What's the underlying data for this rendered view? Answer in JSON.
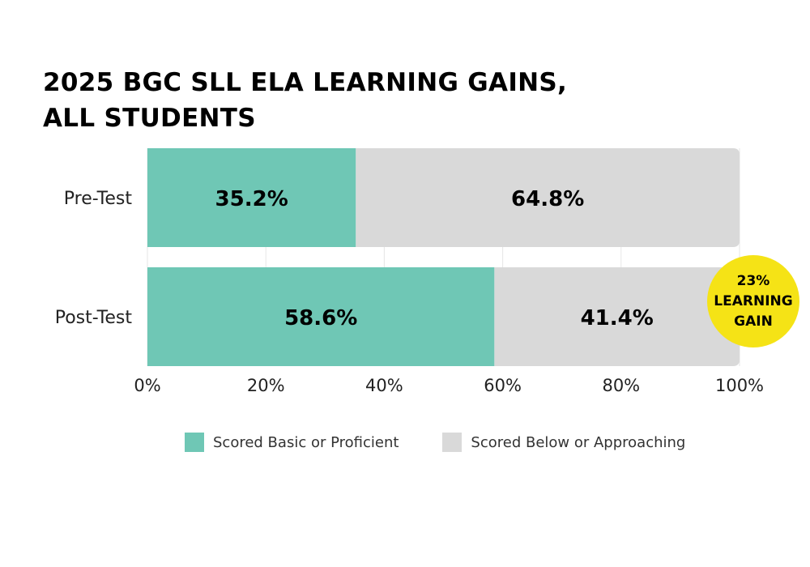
{
  "chart_data": {
    "type": "bar",
    "orientation": "horizontal",
    "stacked": true,
    "title_lines": [
      "2025 BGC SLL ELA LEARNING GAINS,",
      "ALL STUDENTS"
    ],
    "categories": [
      "Pre-Test",
      "Post-Test"
    ],
    "series": [
      {
        "name": "Scored Basic or Proficient",
        "values": [
          35.2,
          58.6
        ],
        "labels": [
          "35.2%",
          "58.6%"
        ],
        "color": "#6fc7b5"
      },
      {
        "name": "Scored Below or Approaching",
        "values": [
          64.8,
          41.4
        ],
        "labels": [
          "64.8%",
          "41.4%"
        ],
        "color": "#d9d9d9"
      }
    ],
    "xlim": [
      0,
      100
    ],
    "xticks": [
      0,
      20,
      40,
      60,
      80,
      100
    ],
    "xtick_labels": [
      "0%",
      "20%",
      "40%",
      "60%",
      "80%",
      "100%"
    ],
    "grid": "vertical",
    "legend_position": "bottom",
    "annotation": {
      "lines": [
        "23%",
        "LEARNING",
        "GAIN"
      ],
      "color": "#f5e316"
    }
  }
}
